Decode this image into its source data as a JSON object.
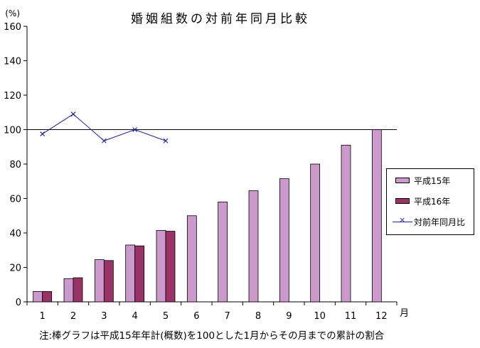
{
  "chart_data": {
    "type": "bar",
    "title": "婚姻組数の対前年同月比較",
    "ylabel": "(%)",
    "xlabel": "月",
    "categories": [
      "1",
      "2",
      "3",
      "4",
      "5",
      "6",
      "7",
      "8",
      "9",
      "10",
      "11",
      "12"
    ],
    "ylim": [
      0,
      160
    ],
    "yticks": [
      0,
      20,
      40,
      60,
      80,
      100,
      120,
      140,
      160
    ],
    "reference_line": 100,
    "grid": false,
    "legend_position": "right",
    "series": [
      {
        "name": "平成15年",
        "type": "bar",
        "color": "#cc99cc",
        "values": [
          6,
          13.5,
          24.5,
          33,
          41.5,
          50,
          58,
          64.5,
          71.5,
          80,
          91,
          100
        ]
      },
      {
        "name": "平成16年",
        "type": "bar",
        "color": "#993366",
        "values": [
          6,
          14,
          24,
          32.5,
          41,
          null,
          null,
          null,
          null,
          null,
          null,
          null
        ]
      },
      {
        "name": "対前年同月比",
        "type": "line",
        "color": "#1f1f9a",
        "marker": "x",
        "values": [
          97.5,
          109,
          93.5,
          100,
          93.5,
          null,
          null,
          null,
          null,
          null,
          null,
          null
        ]
      }
    ],
    "note": "注:棒グラフは平成15年年計(概数)を100とした1月からその月までの累計の割合"
  }
}
